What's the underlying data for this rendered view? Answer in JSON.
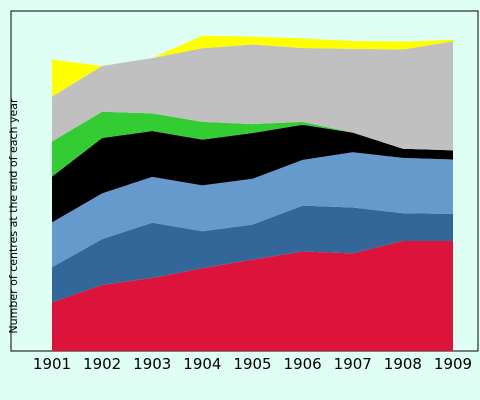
{
  "chart_data": {
    "type": "area",
    "stacked": true,
    "title": "",
    "xlabel": "",
    "ylabel": "Number of centres at the end of each year",
    "categories": [
      "1901",
      "1902",
      "1903",
      "1904",
      "1905",
      "1906",
      "1907",
      "1908",
      "1909"
    ],
    "ylim": [
      0,
      1
    ],
    "grid": false,
    "legend": "none",
    "background_color": "#e0fff4",
    "plot_background_color": "#e0fff4",
    "series": [
      {
        "color": "#dc143c",
        "values": [
          0.154,
          0.209,
          0.231,
          0.262,
          0.289,
          0.315,
          0.309,
          0.348,
          0.348
        ]
      },
      {
        "color": "#336699",
        "values": [
          0.111,
          0.145,
          0.175,
          0.117,
          0.111,
          0.145,
          0.145,
          0.088,
          0.086
        ]
      },
      {
        "color": "#6699cc",
        "values": [
          0.142,
          0.145,
          0.145,
          0.145,
          0.145,
          0.145,
          0.175,
          0.175,
          0.172
        ]
      },
      {
        "color": "#000000",
        "values": [
          0.145,
          0.175,
          0.145,
          0.145,
          0.145,
          0.111,
          0.062,
          0.029,
          0.029
        ]
      },
      {
        "color": "#33cc33",
        "values": [
          0.111,
          0.083,
          0.056,
          0.056,
          0.028,
          0.009,
          0.0,
          0.0,
          0.0
        ]
      },
      {
        "color": "#c0c0c0",
        "values": [
          0.142,
          0.145,
          0.175,
          0.233,
          0.252,
          0.234,
          0.265,
          0.314,
          0.345
        ]
      },
      {
        "color": "#ffff00",
        "values": [
          0.117,
          0.0,
          0.0,
          0.04,
          0.025,
          0.03,
          0.025,
          0.025,
          0.005
        ]
      }
    ]
  }
}
